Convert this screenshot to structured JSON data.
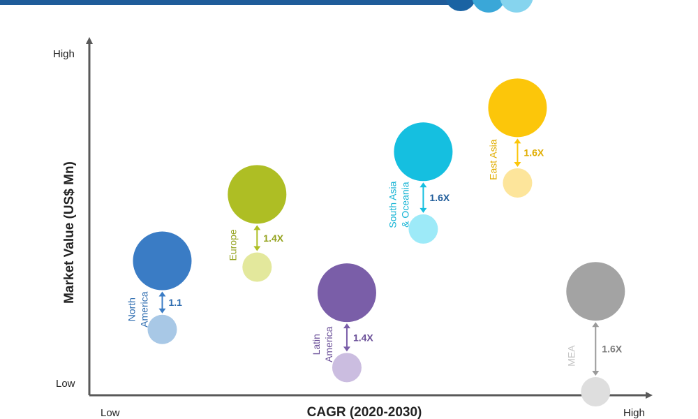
{
  "colors": {
    "top_bar": "#1f5c9a",
    "deco": [
      "#1a63a3",
      "#3aa7d8",
      "#86d4ee"
    ],
    "axis": "#595959",
    "arrow_gray": "#9a9a9a"
  },
  "chart_data": {
    "type": "scatter",
    "title": "",
    "xlabel": "CAGR (2020-2030)",
    "ylabel": "Market Value (US$ Mn)",
    "x_tick_labels": [
      "Low",
      "High"
    ],
    "y_tick_labels": [
      "Low",
      "High"
    ],
    "xlim": [
      0,
      100
    ],
    "ylim": [
      0,
      100
    ],
    "grid": false,
    "legend": "none",
    "series": [
      {
        "region_lines": [
          "North",
          "America"
        ],
        "x": 12.7,
        "y_now": 38.8,
        "y_future": 19.0,
        "multiplier": "1.1",
        "color_now": "#3a7cc5",
        "color_future": "#a8c8e6",
        "text_color": "#2f6db0"
      },
      {
        "region_lines": [
          "Europe"
        ],
        "x": 29.7,
        "y_now": 58.0,
        "y_future": 37.0,
        "multiplier": "1.4X",
        "color_now": "#aebe24",
        "color_future": "#e3e89c",
        "text_color": "#95a31f"
      },
      {
        "region_lines": [
          "Latin",
          "America"
        ],
        "x": 45.8,
        "y_now": 29.6,
        "y_future": 8.0,
        "multiplier": "1.4X",
        "color_now": "#7a5ea8",
        "color_future": "#cbbde0",
        "text_color": "#6a4f98"
      },
      {
        "region_lines": [
          "South Asia",
          "& Oceania"
        ],
        "x": 59.5,
        "y_now": 70.3,
        "y_future": 48.0,
        "multiplier": "1.6X",
        "color_now": "#15bfe0",
        "color_future": "#9deaf8",
        "text_color": "#14b3d4",
        "multiplier_color": "#1f5c9a"
      },
      {
        "region_lines": [
          "East Asia"
        ],
        "x": 76.4,
        "y_now": 83.0,
        "y_future": 61.3,
        "multiplier": "1.6X",
        "color_now": "#fcc60a",
        "color_future": "#fde59b",
        "text_color": "#e0ad00"
      },
      {
        "region_lines": [
          "MEA"
        ],
        "x": 90.4,
        "y_now": 30.0,
        "y_future": 1.0,
        "multiplier": "1.6X",
        "color_now": "#a3a3a3",
        "color_future": "#dedede",
        "text_color": "#c4c4c4",
        "multiplier_color": "#7a7a7a"
      }
    ]
  }
}
